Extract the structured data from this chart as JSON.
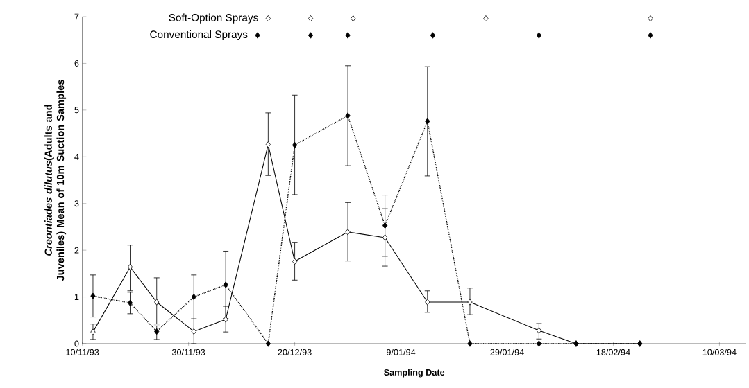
{
  "chart_data": {
    "type": "line",
    "xlabel": "Sampling Date",
    "ylabel": "*Creontiades dilutus*(Adults and Juveniles) Mean of 10m Suction Samples",
    "xlim": [
      "1993-11-10",
      "1994-03-15"
    ],
    "xticks": [
      {
        "value": "1993-11-10",
        "label": "10/11/93"
      },
      {
        "value": "1993-11-30",
        "label": "30/11/93"
      },
      {
        "value": "1993-12-20",
        "label": "20/12/93"
      },
      {
        "value": "1994-01-09",
        "label": "9/01/94"
      },
      {
        "value": "1994-01-29",
        "label": "29/01/94"
      },
      {
        "value": "1994-02-18",
        "label": "18/02/94"
      },
      {
        "value": "1994-03-10",
        "label": "10/03/94"
      }
    ],
    "ylim": [
      0,
      7
    ],
    "yticks": [
      0,
      1,
      2,
      3,
      4,
      5,
      6,
      7
    ],
    "grid": false,
    "legend": false,
    "marker": "diamond",
    "series": [
      {
        "color": "#ffffff",
        "line_style": "solid",
        "x": [
          "1993-11-12",
          "1993-11-19",
          "1993-11-24",
          "1993-12-01",
          "1993-12-07",
          "1993-12-15",
          "1993-12-20",
          "1993-12-30",
          "1994-01-06",
          "1994-01-14",
          "1994-01-22",
          "1994-02-04",
          "1994-02-11",
          "1994-02-23"
        ],
        "values": [
          0.25,
          1.64,
          0.89,
          0.26,
          0.52,
          4.26,
          1.76,
          2.39,
          2.27,
          0.89,
          0.89,
          0.28,
          0,
          0
        ],
        "errors": [
          [
            0.09,
            0.42
          ],
          [
            1.13,
            2.11
          ],
          [
            0.42,
            1.41
          ],
          [
            0,
            0.53
          ],
          [
            0.25,
            0.8
          ],
          [
            3.6,
            4.94
          ],
          [
            1.36,
            2.17
          ],
          [
            1.77,
            3.02
          ],
          [
            1.66,
            2.89
          ],
          [
            0.67,
            1.13
          ],
          [
            0.62,
            1.19
          ],
          [
            0.1,
            0.43
          ],
          null,
          null
        ]
      },
      {
        "color": "#000000",
        "line_style": "dotted",
        "x": [
          "1993-11-12",
          "1993-11-19",
          "1993-11-24",
          "1993-12-01",
          "1993-12-07",
          "1993-12-15",
          "1993-12-20",
          "1993-12-30",
          "1994-01-06",
          "1994-01-14",
          "1994-01-22",
          "1994-02-04",
          "1994-02-11",
          "1994-02-23"
        ],
        "values": [
          1.02,
          0.87,
          0.26,
          1.0,
          1.26,
          0,
          4.25,
          4.88,
          2.53,
          4.76,
          0,
          0,
          0,
          0
        ],
        "errors": [
          [
            0.57,
            1.47
          ],
          [
            0.64,
            1.1
          ],
          [
            0.09,
            0.38
          ],
          [
            0.53,
            1.47
          ],
          [
            0.54,
            1.98
          ],
          null,
          [
            3.19,
            5.32
          ],
          [
            3.81,
            5.95
          ],
          [
            1.87,
            3.18
          ],
          [
            3.59,
            5.93
          ],
          null,
          null,
          null,
          null
        ]
      },
      {
        "type": "scatter",
        "name": "Soft-Option Sprays",
        "color": "#ffffff",
        "x": [
          "1993-12-15",
          "1993-12-23",
          "1993-12-31",
          "1994-01-25",
          "1994-02-25"
        ],
        "values": [
          6.96,
          6.96,
          6.96,
          6.96,
          6.96
        ]
      },
      {
        "type": "scatter",
        "name": "Conventional Sprays",
        "color": "#000000",
        "x": [
          "1993-12-13",
          "1993-12-23",
          "1993-12-30",
          "1994-01-15",
          "1994-02-04",
          "1994-02-25"
        ],
        "values": [
          6.6,
          6.6,
          6.6,
          6.6,
          6.6,
          6.6
        ]
      }
    ]
  }
}
